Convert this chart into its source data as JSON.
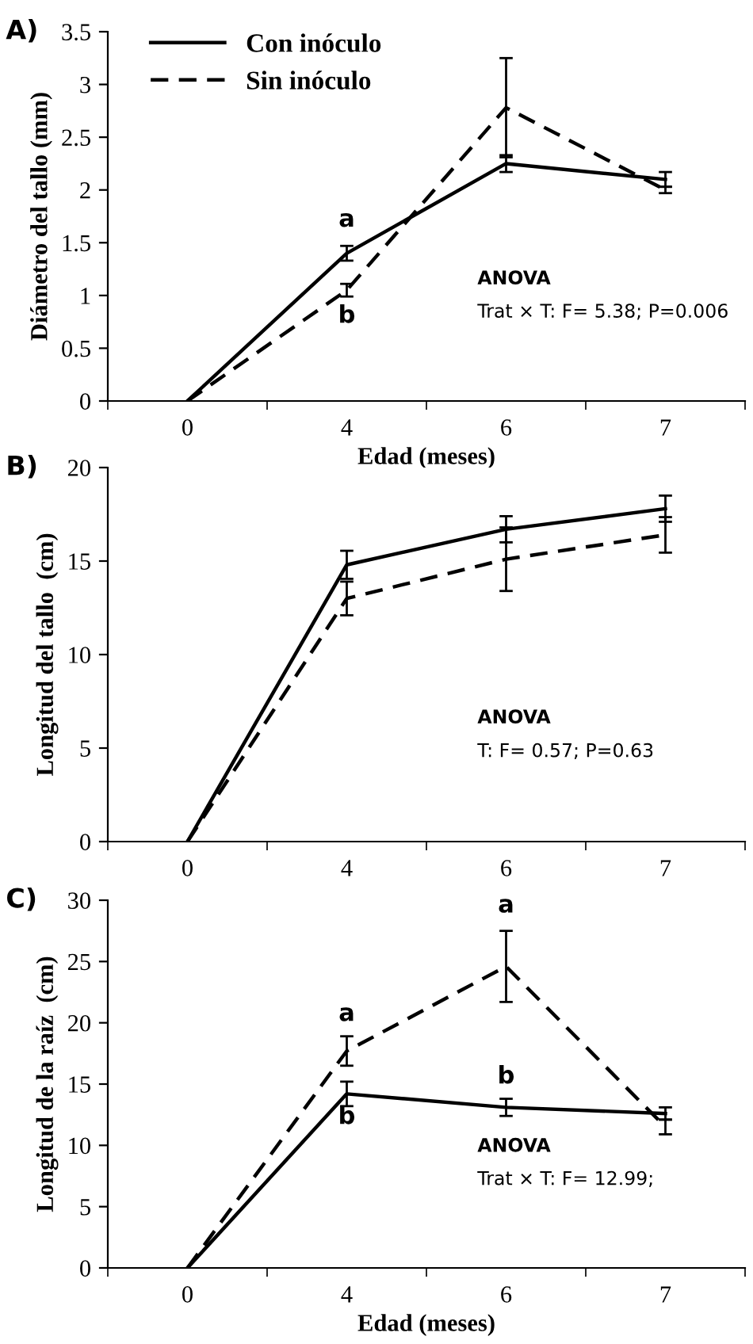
{
  "chart_data": [
    {
      "type": "line",
      "title": "A)",
      "xlabel": "Edad (meses)",
      "ylabel": "Diámetro del tallo (mm)",
      "categories": [
        "0",
        "4",
        "6",
        "7"
      ],
      "ylim": [
        0,
        3.5
      ],
      "yticks": [
        0,
        0.5,
        1,
        1.5,
        2,
        2.5,
        3,
        3.5
      ],
      "grid": false,
      "legend": "top left",
      "series": [
        {
          "name": "Con inóculo",
          "color": "#000000",
          "line_style": "solid",
          "values": [
            0,
            1.4,
            2.25,
            2.1
          ],
          "errors": [
            null,
            0.07,
            0.08,
            0.07
          ]
        },
        {
          "name": "Sin inóculo",
          "color": "#000000",
          "line_style": "dashed",
          "values": [
            0,
            1.05,
            2.78,
            2.0
          ],
          "errors": [
            null,
            0.06,
            [
              2.31,
              3.25
            ],
            0.03
          ]
        }
      ],
      "annotations": [
        "a",
        "b",
        "ANOVA",
        "Trat × T: F= 5.38; P=0.006"
      ]
    },
    {
      "type": "line",
      "title": "B)",
      "ylabel": "Longitud del tallo  (cm)",
      "categories": [
        "0",
        "4",
        "6",
        "7"
      ],
      "ylim": [
        0,
        20
      ],
      "yticks": [
        0,
        5,
        10,
        15,
        20
      ],
      "grid": false,
      "series": [
        {
          "color": "#000000",
          "line_style": "solid",
          "values": [
            0,
            14.8,
            16.7,
            17.8
          ],
          "errors": [
            null,
            0.75,
            0.7,
            0.7
          ]
        },
        {
          "color": "#000000",
          "line_style": "dashed",
          "values": [
            0,
            13.0,
            15.1,
            16.4
          ],
          "errors": [
            null,
            0.9,
            1.7,
            0.95
          ]
        }
      ],
      "annotations": [
        "ANOVA",
        "T: F= 0.57; P=0.63"
      ]
    },
    {
      "type": "line",
      "title": "C)",
      "xlabel": "Edad (meses)",
      "ylabel": "Longitud de la raíz  (cm)",
      "categories": [
        "0",
        "4",
        "6",
        "7"
      ],
      "ylim": [
        0,
        30
      ],
      "yticks": [
        0,
        5,
        10,
        15,
        20,
        25,
        30
      ],
      "grid": false,
      "series": [
        {
          "color": "#000000",
          "line_style": "solid",
          "values": [
            0,
            14.2,
            13.1,
            12.6
          ],
          "errors": [
            null,
            1.0,
            0.7,
            0.5
          ]
        },
        {
          "color": "#000000",
          "line_style": "dashed",
          "values": [
            0,
            17.7,
            24.6,
            11.5
          ],
          "errors": [
            null,
            1.2,
            2.9,
            0.6
          ]
        }
      ],
      "annotations": [
        "a",
        "b",
        "a",
        "b",
        "ANOVA",
        "Trat × T: F= 12.99;"
      ]
    }
  ]
}
